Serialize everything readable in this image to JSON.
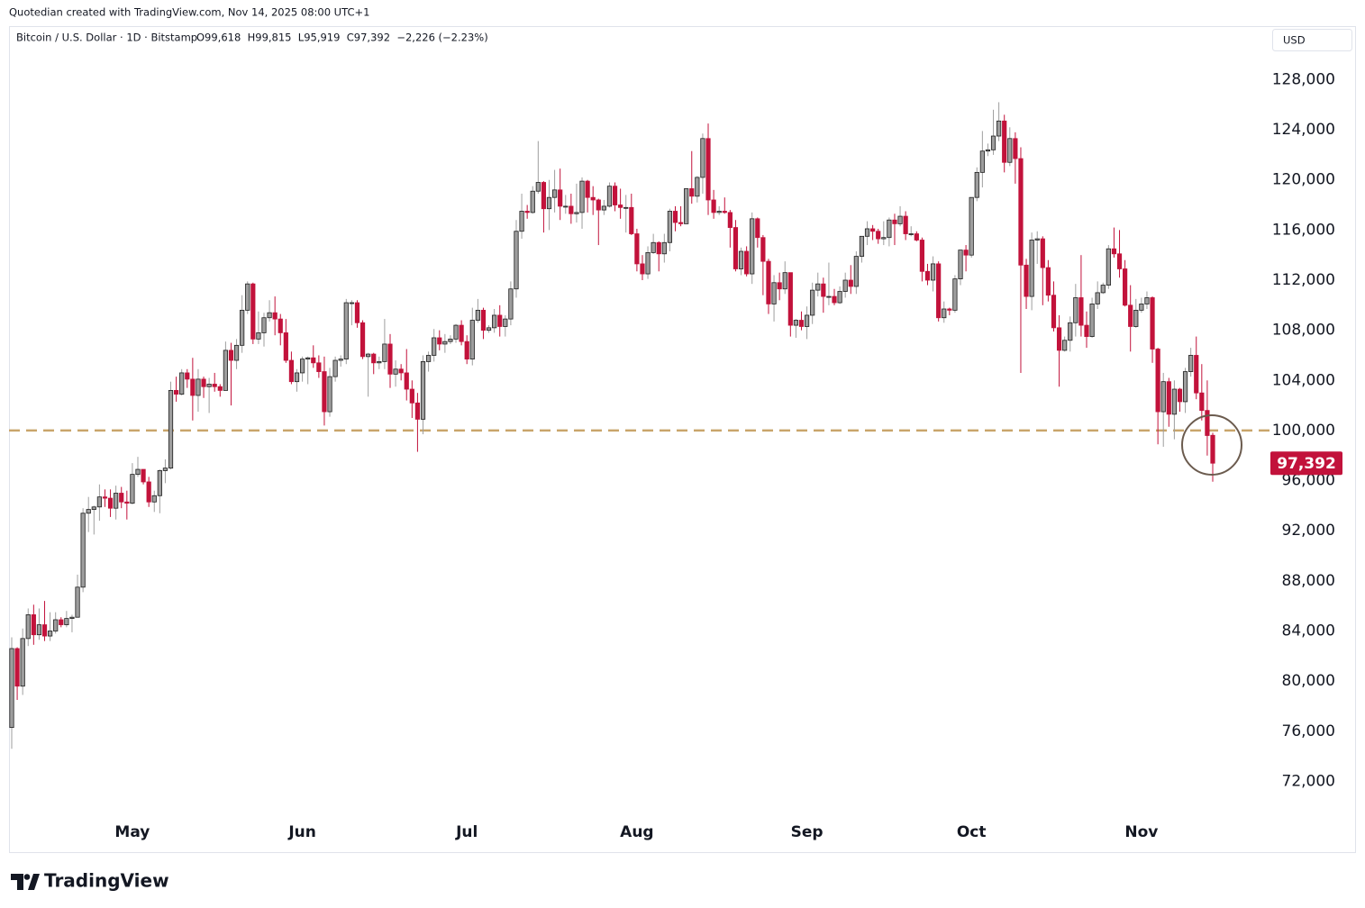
{
  "header": {
    "credit": "Quotedian created with TradingView.com, Nov 14, 2025 08:00 UTC+1",
    "brand": "TradingView"
  },
  "chart_data": {
    "type": "candlestick",
    "symbol": "Bitcoin / U.S. Dollar · 1D · Bitstamp",
    "ohlc_text": "O99,618  H99,815  L95,919  C97,392  −2,226 (−2.23%)",
    "currency": "USD",
    "last_price_label": "97,392",
    "up_color": "#9e9e9e",
    "down_color": "#c2123b",
    "level": {
      "value": 100000,
      "color": "#c9a56b"
    },
    "categories": [
      null,
      null,
      null,
      null,
      null,
      null,
      null,
      null,
      null,
      null,
      null,
      null,
      null,
      null,
      null,
      null,
      null,
      null,
      null,
      null,
      null,
      null,
      "May",
      null,
      null,
      null,
      null,
      null,
      null,
      null,
      null,
      null,
      null,
      null,
      null,
      null,
      null,
      null,
      null,
      null,
      null,
      null,
      null,
      null,
      null,
      null,
      null,
      null,
      null,
      null,
      null,
      null,
      null,
      "Jun",
      null,
      null,
      null,
      null,
      null,
      null,
      null,
      null,
      null,
      null,
      null,
      null,
      null,
      null,
      null,
      null,
      null,
      null,
      null,
      null,
      null,
      null,
      null,
      null,
      null,
      null,
      null,
      null,
      null,
      "Jul",
      null,
      null,
      null,
      null,
      null,
      null,
      null,
      null,
      null,
      null,
      null,
      null,
      null,
      null,
      null,
      null,
      null,
      null,
      null,
      null,
      null,
      null,
      null,
      null,
      null,
      null,
      null,
      null,
      null,
      null,
      "Aug",
      null,
      null,
      null,
      null,
      null,
      null,
      null,
      null,
      null,
      null,
      null,
      null,
      null,
      null,
      null,
      null,
      null,
      null,
      null,
      null,
      null,
      null,
      null,
      null,
      null,
      null,
      null,
      null,
      null,
      null,
      "Sep",
      null,
      null,
      null,
      null,
      null,
      null,
      null,
      null,
      null,
      null,
      null,
      null,
      null,
      null,
      null,
      null,
      null,
      null,
      null,
      null,
      null,
      null,
      null,
      null,
      null,
      null,
      null,
      null,
      null,
      "Oct",
      null,
      null,
      null,
      null,
      null,
      null,
      null,
      null,
      null,
      null,
      null,
      null,
      null,
      null,
      null,
      null,
      null,
      null,
      null,
      null,
      null,
      null,
      null,
      null,
      null,
      null,
      null,
      null,
      null,
      null,
      "Nov",
      null,
      null,
      null,
      null,
      null,
      null,
      null,
      null,
      null,
      null,
      null,
      null,
      null
    ],
    "open": [
      76300,
      82600,
      79600,
      83400,
      85300,
      83700,
      84500,
      83600,
      84000,
      84900,
      84500,
      85000,
      85100,
      87500,
      93400,
      93700,
      93900,
      94700,
      94600,
      93800,
      95000,
      94300,
      94200,
      96500,
      96900,
      95900,
      94300,
      94800,
      96800,
      97000,
      103200,
      102900,
      104600,
      104100,
      102800,
      104100,
      103500,
      103700,
      103500,
      103200,
      106400,
      105600,
      106800,
      109600,
      111700,
      107300,
      107800,
      109000,
      109400,
      108900,
      107800,
      105600,
      103900,
      104600,
      105700,
      105800,
      105400,
      104700,
      101500,
      104300,
      105600,
      105700,
      110200,
      110200,
      108600,
      105900,
      106100,
      105400,
      105500,
      106900,
      104500,
      104900,
      104600,
      103300,
      102200,
      100900,
      105500,
      106000,
      107400,
      106900,
      107100,
      107300,
      108400,
      107100,
      105700,
      108800,
      109600,
      108000,
      108200,
      109200,
      108300,
      108900,
      111300,
      115900,
      117500,
      117400,
      119100,
      119800,
      117700,
      118600,
      119200,
      117900,
      117900,
      117300,
      117400,
      119900,
      118600,
      118400,
      117600,
      117900,
      119500,
      118000,
      117800,
      117800,
      115700,
      113300,
      112500,
      114200,
      115000,
      114100,
      115000,
      117500,
      116600,
      116500,
      119300,
      118700,
      120200,
      123300,
      118400,
      117400,
      117500,
      117400,
      116200,
      112900,
      114300,
      112500,
      116900,
      115400,
      113500,
      110100,
      111800,
      111300,
      112600,
      108400,
      108800,
      108300,
      109200,
      111200,
      111700,
      110700,
      110700,
      110200,
      111100,
      112000,
      111500,
      113900,
      115500,
      116100,
      115900,
      115300,
      115400,
      116800,
      116500,
      117100,
      115700,
      115700,
      115200,
      112700,
      112000,
      113300,
      109000,
      109700,
      109600,
      112100,
      114400,
      114000,
      118600,
      120600,
      122300,
      122400,
      123500,
      124700,
      121400,
      123300,
      121700,
      113200,
      110700,
      115200,
      115300,
      113000,
      110800,
      108200,
      106400,
      107200,
      108600,
      110600,
      108400,
      107500,
      110100,
      111000,
      111600,
      114500,
      114100,
      112900,
      110000,
      108300,
      109600,
      110100,
      110600,
      106500,
      101500,
      103900,
      101300,
      103300,
      102300,
      104700,
      106000,
      103000,
      101600,
      99618
    ],
    "high": [
      83500,
      82700,
      84200,
      85800,
      86100,
      85800,
      86400,
      85500,
      85500,
      85100,
      85600,
      85300,
      88500,
      93800,
      94700,
      94000,
      95700,
      95300,
      95300,
      95600,
      95500,
      95200,
      97400,
      97900,
      96900,
      96300,
      95200,
      96900,
      97700,
      103900,
      104300,
      104900,
      104900,
      105800,
      104900,
      104300,
      104200,
      104600,
      103700,
      107100,
      107000,
      107300,
      110800,
      111900,
      111800,
      109500,
      109400,
      110400,
      110700,
      109300,
      108900,
      106300,
      104900,
      105900,
      105900,
      106800,
      106000,
      105900,
      105000,
      105900,
      106000,
      110500,
      110400,
      110400,
      108800,
      106200,
      106200,
      105900,
      108900,
      107700,
      105600,
      105300,
      106500,
      104000,
      103000,
      106000,
      106300,
      108100,
      108000,
      107700,
      107600,
      108500,
      108800,
      107600,
      109800,
      110500,
      109800,
      108400,
      109700,
      110000,
      109200,
      111900,
      116800,
      118900,
      118000,
      119500,
      123100,
      119900,
      120000,
      120800,
      120900,
      118800,
      118900,
      119700,
      120200,
      120000,
      119500,
      118500,
      118400,
      119800,
      119800,
      119300,
      118800,
      118900,
      116100,
      114000,
      114700,
      115700,
      115100,
      115700,
      117700,
      117900,
      117900,
      119300,
      122300,
      120300,
      123700,
      124500,
      119200,
      117900,
      118600,
      117600,
      116800,
      114600,
      114700,
      117400,
      117000,
      115600,
      113700,
      112400,
      112600,
      113500,
      112600,
      108900,
      109500,
      109900,
      111800,
      112600,
      112200,
      113400,
      111300,
      111500,
      112600,
      113200,
      114300,
      115500,
      116700,
      116400,
      116100,
      116700,
      117000,
      117300,
      117900,
      117500,
      116300,
      115900,
      115400,
      113300,
      113900,
      113500,
      110300,
      109800,
      112400,
      114400,
      114800,
      118600,
      121000,
      123900,
      122900,
      125600,
      126200,
      125200,
      124200,
      123800,
      122600,
      113700,
      115800,
      115900,
      115500,
      113600,
      111900,
      109200,
      107500,
      109100,
      111700,
      114000,
      109500,
      110600,
      111900,
      111800,
      114800,
      116200,
      116000,
      113600,
      111600,
      110500,
      110600,
      111100,
      110700,
      106600,
      104600,
      104200,
      104000,
      103400,
      105000,
      106600,
      107500,
      105300,
      104000,
      99815
    ],
    "low": [
      74600,
      78500,
      78900,
      82800,
      82900,
      83300,
      83200,
      83200,
      83800,
      84300,
      84300,
      83900,
      85100,
      87100,
      91900,
      91700,
      92800,
      93900,
      93100,
      92900,
      93800,
      92900,
      94100,
      96300,
      95700,
      93900,
      93500,
      93400,
      95800,
      96900,
      102300,
      102800,
      103400,
      100800,
      101500,
      102600,
      101400,
      103100,
      102700,
      103200,
      102000,
      104900,
      106200,
      109300,
      106900,
      106900,
      106700,
      108700,
      107600,
      106800,
      105400,
      103700,
      103100,
      103900,
      103700,
      105000,
      104200,
      100400,
      101100,
      103900,
      105100,
      105300,
      108400,
      108200,
      105700,
      102700,
      104500,
      104900,
      104900,
      103400,
      103500,
      104000,
      102400,
      101000,
      98300,
      99700,
      104700,
      105500,
      106400,
      106200,
      106900,
      107000,
      106800,
      105300,
      105200,
      108600,
      107300,
      107800,
      107800,
      107500,
      107500,
      108400,
      110600,
      115300,
      116900,
      117300,
      118900,
      115800,
      116000,
      117400,
      116800,
      117300,
      116500,
      116600,
      116100,
      117400,
      117200,
      114800,
      117200,
      117800,
      117500,
      116900,
      115800,
      115600,
      112700,
      112000,
      112100,
      114100,
      112700,
      113400,
      114300,
      115900,
      116300,
      116500,
      118100,
      118200,
      118900,
      117200,
      116900,
      117200,
      117300,
      114600,
      112700,
      112400,
      112300,
      111700,
      114600,
      110800,
      109300,
      108700,
      110400,
      110900,
      107500,
      107400,
      108000,
      107300,
      108500,
      110700,
      109400,
      110000,
      110000,
      110100,
      110600,
      110900,
      110900,
      113400,
      114800,
      115200,
      114900,
      114800,
      114700,
      114800,
      116300,
      115200,
      115500,
      115100,
      111900,
      111600,
      111100,
      108700,
      108600,
      109200,
      109400,
      111600,
      112700,
      113800,
      118300,
      119400,
      121900,
      122000,
      123100,
      120600,
      121100,
      119700,
      104600,
      109700,
      109600,
      113300,
      110000,
      110300,
      107900,
      103500,
      106300,
      106300,
      107500,
      107500,
      106600,
      107400,
      109700,
      110900,
      111300,
      113800,
      112200,
      109900,
      106300,
      108200,
      109400,
      109700,
      105400,
      98900,
      98700,
      100300,
      99300,
      101500,
      101400,
      104300,
      102500,
      100800,
      98000,
      95919
    ],
    "close": [
      82600,
      79600,
      83400,
      85300,
      83700,
      84500,
      83600,
      84000,
      84900,
      84500,
      85000,
      85100,
      87500,
      93400,
      93700,
      93900,
      94700,
      94600,
      93800,
      95000,
      94300,
      94200,
      96500,
      96900,
      95900,
      94300,
      94800,
      96800,
      97000,
      103200,
      102900,
      104600,
      104100,
      102800,
      104100,
      103500,
      103700,
      103500,
      103200,
      106400,
      105600,
      106800,
      109600,
      111700,
      107300,
      107800,
      109000,
      109400,
      108900,
      107800,
      105600,
      103900,
      104600,
      105700,
      105800,
      105400,
      104700,
      101500,
      104300,
      105600,
      105700,
      110200,
      110200,
      108600,
      105900,
      106100,
      105400,
      105500,
      106900,
      104500,
      104900,
      104600,
      103300,
      102200,
      100900,
      105500,
      106000,
      107400,
      106900,
      107100,
      107300,
      108400,
      107100,
      105700,
      108800,
      109600,
      108000,
      108200,
      109200,
      108300,
      108900,
      111300,
      115900,
      117500,
      117400,
      119100,
      119800,
      117700,
      118600,
      119200,
      117900,
      117900,
      117300,
      117400,
      119900,
      118600,
      118400,
      117600,
      117900,
      119500,
      118000,
      117800,
      117800,
      115700,
      113300,
      112500,
      114200,
      115000,
      114100,
      115000,
      117500,
      116600,
      116500,
      119300,
      118700,
      120200,
      123300,
      118400,
      117400,
      117500,
      117400,
      116200,
      112900,
      114300,
      112500,
      116900,
      115400,
      113500,
      110100,
      111800,
      111300,
      112600,
      108400,
      108800,
      108300,
      109200,
      111200,
      111700,
      110700,
      110700,
      110200,
      111100,
      112000,
      111500,
      113900,
      115500,
      116100,
      115900,
      115300,
      115400,
      116800,
      116500,
      117100,
      115700,
      115700,
      115200,
      112700,
      112000,
      113300,
      109000,
      109700,
      109600,
      112100,
      114400,
      114000,
      118600,
      120600,
      122300,
      122400,
      123500,
      124700,
      121400,
      123300,
      121700,
      113200,
      110700,
      115200,
      115300,
      113000,
      110800,
      108200,
      106400,
      107200,
      108600,
      110600,
      108400,
      107500,
      110100,
      111000,
      111600,
      114500,
      114100,
      112900,
      110000,
      108300,
      109600,
      110100,
      110600,
      106500,
      101500,
      103900,
      101300,
      103300,
      102300,
      104700,
      106000,
      103000,
      101600,
      99600,
      97392
    ],
    "ylim": [
      69300,
      132200
    ],
    "yticks": [
      {
        "value": 72000,
        "label": "72,000"
      },
      {
        "value": 76000,
        "label": "76,000"
      },
      {
        "value": 80000,
        "label": "80,000"
      },
      {
        "value": 84000,
        "label": "84,000"
      },
      {
        "value": 88000,
        "label": "88,000"
      },
      {
        "value": 92000,
        "label": "92,000"
      },
      {
        "value": 96000,
        "label": "96,000"
      },
      {
        "value": 100000,
        "label": "100,000"
      },
      {
        "value": 104000,
        "label": "104,000"
      },
      {
        "value": 108000,
        "label": "108,000"
      },
      {
        "value": 112000,
        "label": "112,000"
      },
      {
        "value": 116000,
        "label": "116,000"
      },
      {
        "value": 120000,
        "label": "120,000"
      },
      {
        "value": 124000,
        "label": "124,000"
      },
      {
        "value": 128000,
        "label": "128,000"
      }
    ]
  }
}
